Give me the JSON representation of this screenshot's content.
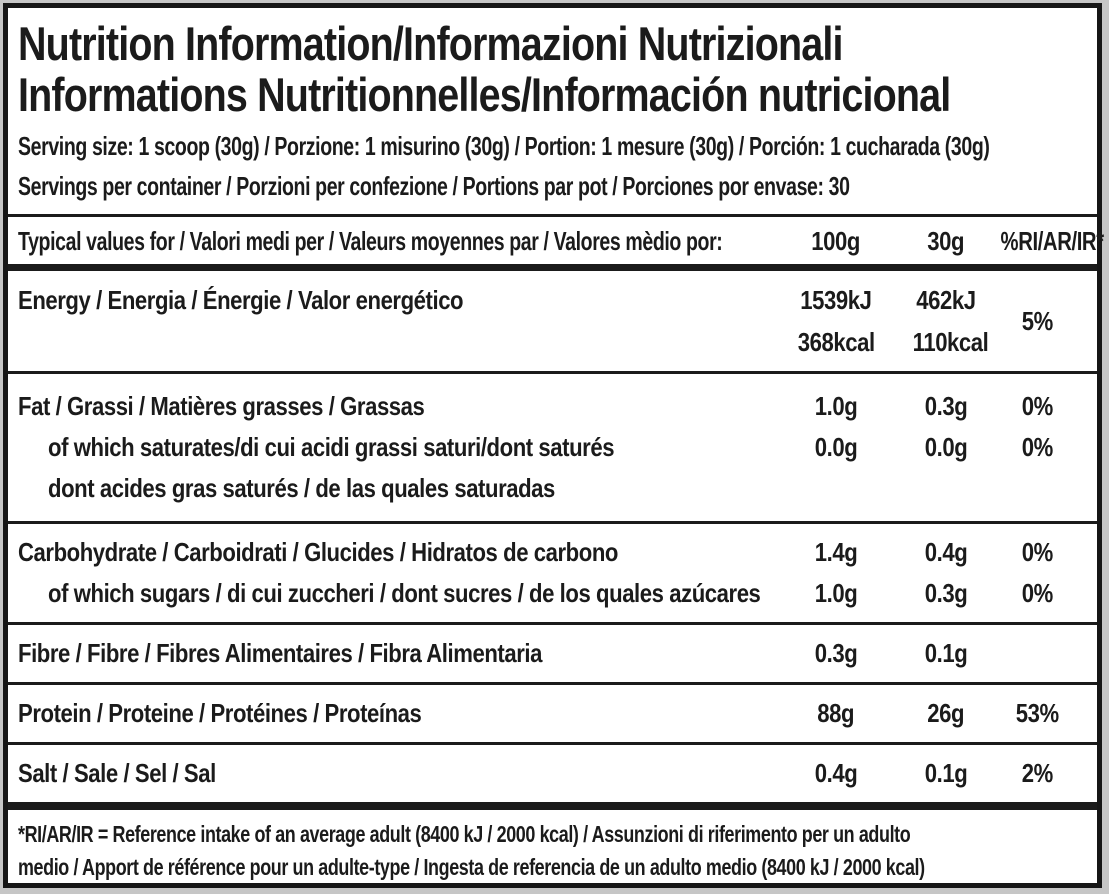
{
  "colors": {
    "outer_background": "#c6c6c6",
    "label_background": "#ffffff",
    "ink": "#1b1b1b"
  },
  "header": {
    "title_line1": "Nutrition Information/Informazioni Nutrizionali",
    "title_line2": "Informations Nutritionnelles/Información nutricional",
    "serving_size": "Serving size: 1 scoop (30g) / Porzione: 1 misurino (30g) / Portion: 1 mesure (30g) / Porción: 1 cucharada (30g)",
    "servings_per_container": "Servings per container / Porzioni per confezione / Portions par pot / Porciones por envase: 30"
  },
  "table": {
    "header": {
      "label": "Typical values for / Valori medi per / Valeurs moyennes par / Valores mèdio por:",
      "col1": "100g",
      "col2": "30g",
      "col3": "%RI/AR/IR*"
    },
    "energy": {
      "label": "Energy / Energia / Énergie / Valor energético",
      "per100_kj": "1539kJ",
      "per100_kcal": "368kcal",
      "per30_kj": "462kJ",
      "per30_kcal": "110kcal",
      "ri": "5%"
    },
    "fat": {
      "label": "Fat / Grassi / Matières grasses / Grassas",
      "per100": "1.0g",
      "per30": "0.3g",
      "ri": "0%"
    },
    "saturates": {
      "label": "of which saturates/di cui acidi grassi saturi/dont saturés",
      "per100": "0.0g",
      "per30": "0.0g",
      "ri": "0%"
    },
    "saturates_cont": {
      "label": "dont acides gras saturés / de las quales saturadas"
    },
    "carbohydrate": {
      "label": "Carbohydrate / Carboidrati / Glucides / Hidratos de carbono",
      "per100": "1.4g",
      "per30": "0.4g",
      "ri": "0%"
    },
    "sugars": {
      "label": "of which sugars / di cui zuccheri / dont sucres / de los quales azúcares",
      "per100": "1.0g",
      "per30": "0.3g",
      "ri": "0%"
    },
    "fibre": {
      "label": "Fibre / Fibre / Fibres Alimentaires / Fibra Alimentaria",
      "per100": "0.3g",
      "per30": "0.1g",
      "ri": ""
    },
    "protein": {
      "label": "Protein / Proteine / Protéines / Proteínas",
      "per100": "88g",
      "per30": "26g",
      "ri": "53%"
    },
    "salt": {
      "label": "Salt / Sale / Sel / Sal",
      "per100": "0.4g",
      "per30": "0.1g",
      "ri": "2%"
    }
  },
  "footnote": {
    "line1": "*RI/AR/IR = Reference intake of an average adult (8400 kJ / 2000 kcal)  / Assunzioni di riferimento per un adulto",
    "line2": "medio / Apport de référence pour un adulte-type / Ingesta de referencia de un adulto medio (8400 kJ / 2000 kcal)"
  }
}
